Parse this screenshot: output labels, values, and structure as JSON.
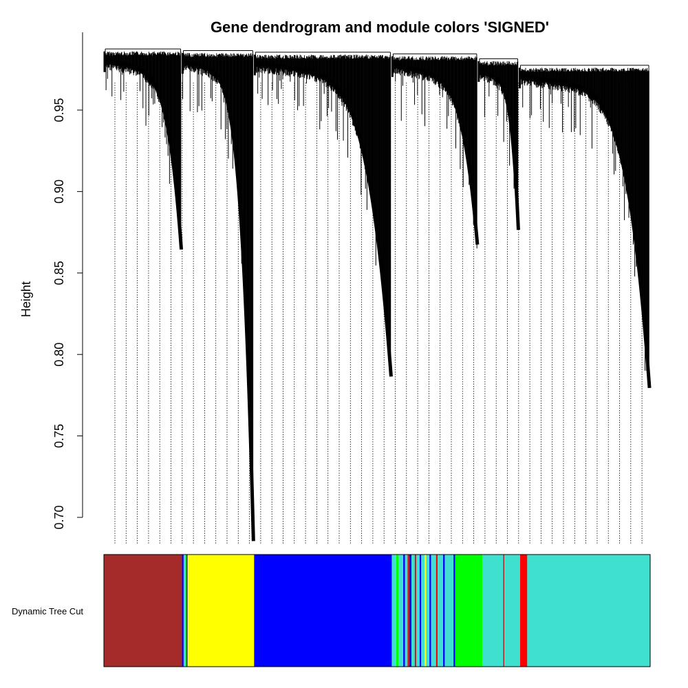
{
  "chart_data": {
    "type": "dendrogram",
    "title": "Gene dendrogram and module colors 'SIGNED'",
    "ylabel": "Height",
    "ylim": [
      0.7,
      0.988
    ],
    "yticks": [
      {
        "value": 0.7,
        "label": "0.70"
      },
      {
        "value": 0.75,
        "label": "0.75"
      },
      {
        "value": 0.8,
        "label": "0.80"
      },
      {
        "value": 0.85,
        "label": "0.85"
      },
      {
        "value": 0.9,
        "label": "0.90"
      },
      {
        "value": 0.95,
        "label": "0.95"
      }
    ],
    "merges": [
      {
        "from": [
          0.0,
          0.143
        ],
        "height": 0.9875
      },
      {
        "from": [
          0.143,
          0.275
        ],
        "height": 0.9865
      },
      {
        "from": [
          0.275,
          0.527
        ],
        "height": 0.9855
      },
      {
        "from": [
          0.527,
          0.685
        ],
        "height": 0.9845
      },
      {
        "from": [
          0.685,
          0.76
        ],
        "height": 0.9815
      },
      {
        "from": [
          0.76,
          1.0
        ],
        "height": 0.9775
      }
    ],
    "clusters": [
      {
        "x0": 0.0,
        "x1": 0.143,
        "top": 0.986,
        "bottom": 0.875
      },
      {
        "x0": 0.143,
        "x1": 0.275,
        "top": 0.985,
        "bottom": 0.696
      },
      {
        "x0": 0.275,
        "x1": 0.527,
        "top": 0.984,
        "bottom": 0.797
      },
      {
        "x0": 0.527,
        "x1": 0.685,
        "top": 0.983,
        "bottom": 0.878
      },
      {
        "x0": 0.685,
        "x1": 0.76,
        "top": 0.98,
        "bottom": 0.887
      },
      {
        "x0": 0.76,
        "x1": 1.0,
        "top": 0.976,
        "bottom": 0.79
      }
    ],
    "colorbar": {
      "label": "Dynamic Tree Cut",
      "segments": [
        {
          "from": 0.0,
          "to": 0.143,
          "color": "brown"
        },
        {
          "from": 0.143,
          "to": 0.146,
          "color": "blue"
        },
        {
          "from": 0.146,
          "to": 0.149,
          "color": "turquoise"
        },
        {
          "from": 0.149,
          "to": 0.151,
          "color": "green"
        },
        {
          "from": 0.151,
          "to": 0.153,
          "color": "blue"
        },
        {
          "from": 0.153,
          "to": 0.275,
          "color": "yellow"
        },
        {
          "from": 0.275,
          "to": 0.527,
          "color": "blue"
        },
        {
          "from": 0.527,
          "to": 0.535,
          "color": "turquoise"
        },
        {
          "from": 0.535,
          "to": 0.539,
          "color": "green"
        },
        {
          "from": 0.539,
          "to": 0.548,
          "color": "turquoise"
        },
        {
          "from": 0.548,
          "to": 0.551,
          "color": "blue"
        },
        {
          "from": 0.551,
          "to": 0.556,
          "color": "turquoise"
        },
        {
          "from": 0.556,
          "to": 0.559,
          "color": "red"
        },
        {
          "from": 0.559,
          "to": 0.563,
          "color": "blue"
        },
        {
          "from": 0.563,
          "to": 0.569,
          "color": "turquoise"
        },
        {
          "from": 0.569,
          "to": 0.572,
          "color": "brown"
        },
        {
          "from": 0.572,
          "to": 0.578,
          "color": "turquoise"
        },
        {
          "from": 0.578,
          "to": 0.581,
          "color": "blue"
        },
        {
          "from": 0.581,
          "to": 0.587,
          "color": "turquoise"
        },
        {
          "from": 0.587,
          "to": 0.59,
          "color": "yellow"
        },
        {
          "from": 0.59,
          "to": 0.596,
          "color": "turquoise"
        },
        {
          "from": 0.596,
          "to": 0.599,
          "color": "blue"
        },
        {
          "from": 0.599,
          "to": 0.608,
          "color": "turquoise"
        },
        {
          "from": 0.608,
          "to": 0.611,
          "color": "red"
        },
        {
          "from": 0.611,
          "to": 0.621,
          "color": "turquoise"
        },
        {
          "from": 0.621,
          "to": 0.624,
          "color": "blue"
        },
        {
          "from": 0.624,
          "to": 0.64,
          "color": "turquoise"
        },
        {
          "from": 0.64,
          "to": 0.643,
          "color": "blue"
        },
        {
          "from": 0.643,
          "to": 0.693,
          "color": "green"
        },
        {
          "from": 0.693,
          "to": 0.731,
          "color": "turquoise"
        },
        {
          "from": 0.731,
          "to": 0.733,
          "color": "brown"
        },
        {
          "from": 0.733,
          "to": 0.762,
          "color": "turquoise"
        },
        {
          "from": 0.762,
          "to": 0.775,
          "color": "red"
        },
        {
          "from": 0.775,
          "to": 1.0,
          "color": "turquoise"
        }
      ]
    },
    "colors": {
      "brown": "#A52A2A",
      "yellow": "#FFFF00",
      "blue": "#0000FF",
      "green": "#00FF00",
      "turquoise": "#40E0D0",
      "red": "#FF0000",
      "axis": "#000000",
      "branch": "#000000",
      "guide": "#000000"
    }
  }
}
